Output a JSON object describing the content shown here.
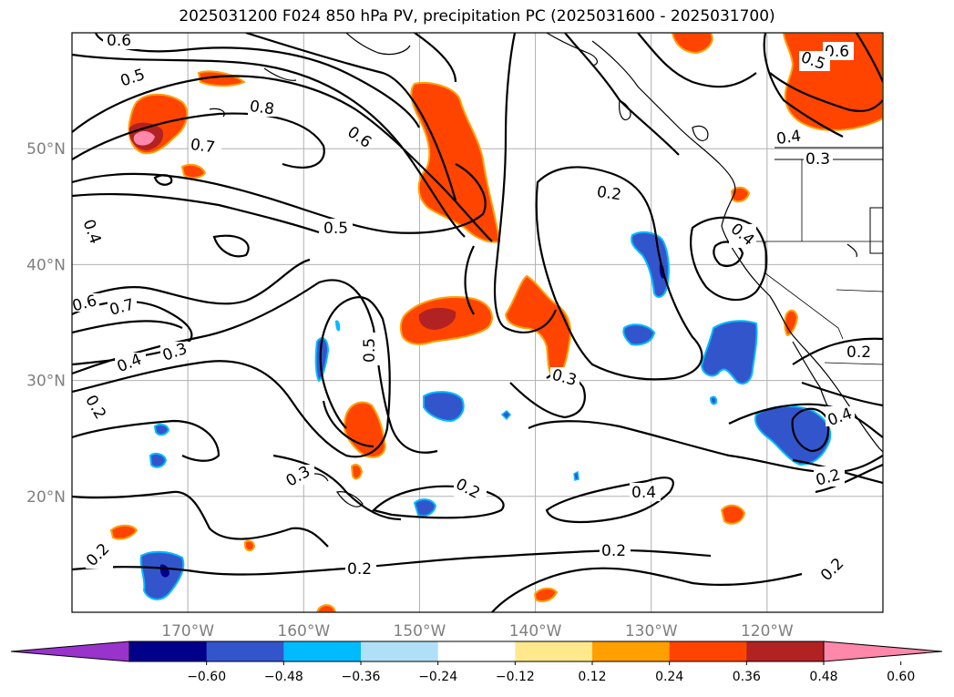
{
  "title": "2025031200 F024 850 hPa PV, precipitation PC (2025031600 - 2025031700)",
  "map": {
    "extent": {
      "lon": [
        -180,
        -110
      ],
      "lat": [
        10,
        60
      ]
    },
    "lon_ticks": [
      {
        "value": -170,
        "label": "170°W"
      },
      {
        "value": -160,
        "label": "160°W"
      },
      {
        "value": -150,
        "label": "150°W"
      },
      {
        "value": -140,
        "label": "140°W"
      },
      {
        "value": -130,
        "label": "130°W"
      },
      {
        "value": -120,
        "label": "120°W"
      }
    ],
    "lat_ticks": [
      {
        "value": 20,
        "label": "20°N"
      },
      {
        "value": 30,
        "label": "30°N"
      },
      {
        "value": 40,
        "label": "40°N"
      },
      {
        "value": 50,
        "label": "50°N"
      }
    ],
    "contour_labels": [
      "0.6",
      "0.5",
      "0.8",
      "0.7",
      "0.6",
      "0.5",
      "0.4",
      "0.4",
      "0.6",
      "0.7",
      "0.4",
      "0.3",
      "0.2",
      "0.5",
      "0.3",
      "0.3",
      "0.2",
      "0.2",
      "0.4",
      "0.2",
      "0.2",
      "0.2",
      "0.2",
      "0.4",
      "0.4",
      "0.2",
      "0.6",
      "0.5",
      "0.2",
      "0.3"
    ],
    "grid": true,
    "coastline_color": "#000000",
    "contour_color": "#000000"
  },
  "colorbar": {
    "ticks": [
      "−0.60",
      "−0.48",
      "−0.36",
      "−0.24",
      "−0.12",
      "0.12",
      "0.24",
      "0.36",
      "0.48",
      "0.60"
    ],
    "colors": [
      "#9933cc",
      "#00008b",
      "#3355cc",
      "#00bbff",
      "#b0e0f8",
      "#ffffff",
      "#ffe98c",
      "#ffa000",
      "#ff4400",
      "#b22222",
      "#ff88aa"
    ]
  },
  "precip_colors": {
    "pos_weak": "#ffe98c",
    "pos_mid": "#ffa000",
    "pos_strong": "#ff4400",
    "pos_vstrong": "#b22222",
    "pos_max": "#ff88aa",
    "neg_weak": "#00bbff",
    "neg_mid": "#3355cc",
    "neg_strong": "#00008b"
  }
}
